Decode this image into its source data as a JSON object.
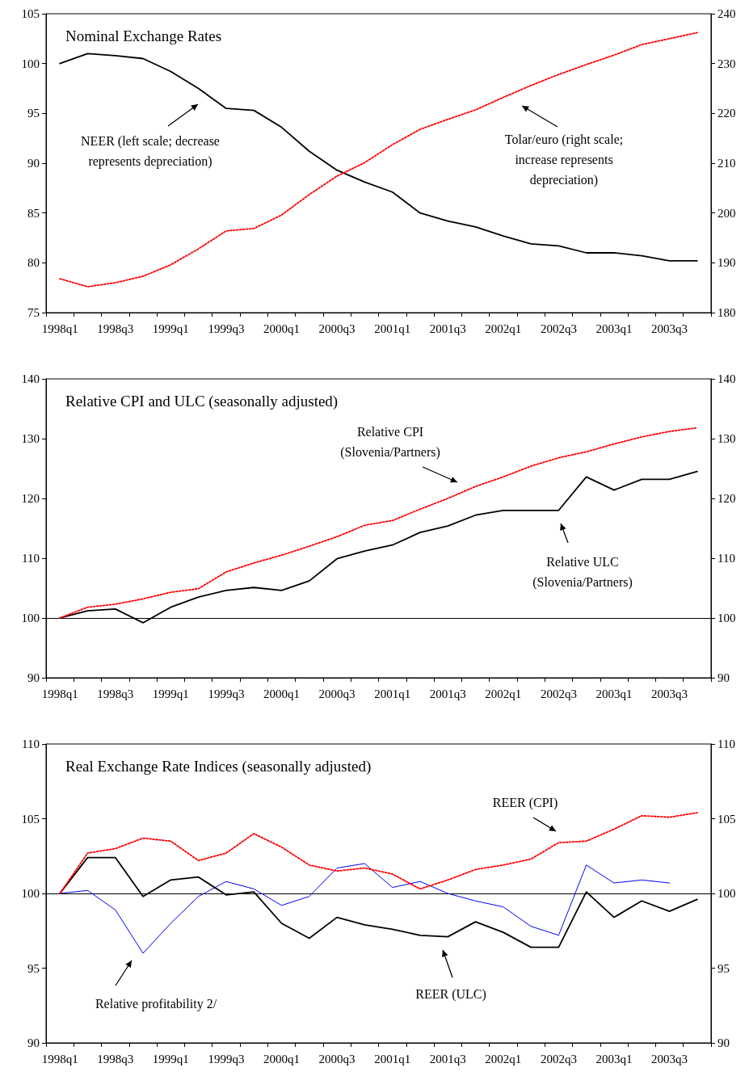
{
  "chart_data": [
    {
      "type": "line",
      "title": "Nominal Exchange Rates",
      "categories": [
        "1998q1",
        null,
        "1998q3",
        null,
        "1999q1",
        null,
        "1999q3",
        null,
        "2000q1",
        null,
        "2000q3",
        null,
        "2001q1",
        null,
        "2001q3",
        null,
        "2002q1",
        null,
        "2002q3",
        null,
        "2003q1",
        null,
        "2003q3",
        null
      ],
      "series": [
        {
          "color": "#000000",
          "line_style": "solid",
          "values": [
            100,
            101,
            100.8,
            100.5,
            99.2,
            97.5,
            95.5,
            95.3,
            93.6,
            91.2,
            89.3,
            88.1,
            87.1,
            85,
            84.2,
            83.6,
            82.7,
            81.9,
            81.7,
            81,
            81,
            80.7,
            80.2,
            80.2
          ]
        },
        {
          "color": "#ff0000",
          "line_style": "dotted",
          "axis": "y2",
          "values": [
            186.8,
            185.2,
            186,
            187.3,
            189.6,
            192.8,
            196.4,
            196.9,
            199.6,
            203.7,
            207.4,
            210.1,
            213.7,
            216.8,
            218.8,
            220.7,
            223.2,
            225.6,
            227.8,
            229.8,
            231.7,
            233.8,
            235,
            236.2
          ]
        }
      ],
      "ylim": [
        75,
        105
      ],
      "yticks": [
        75,
        80,
        85,
        90,
        95,
        100,
        105
      ],
      "y2lim": [
        180,
        240
      ],
      "y2ticks": [
        180,
        190,
        200,
        210,
        220,
        230,
        240
      ],
      "annotations": [
        "NEER (left scale; decrease\nrepresents depreciation)",
        "Tolar/euro (right scale;\nincrease represents\ndepreciation)"
      ],
      "grid": false,
      "marker": "none"
    },
    {
      "type": "line",
      "title": "Relative CPI and ULC (seasonally adjusted)",
      "categories": [
        "1998q1",
        null,
        "1998q3",
        null,
        "1999q1",
        null,
        "1999q3",
        null,
        "2000q1",
        null,
        "2000q3",
        null,
        "2001q1",
        null,
        "2001q3",
        null,
        "2002q1",
        null,
        "2002q3",
        null,
        "2003q1",
        null,
        "2003q3",
        null
      ],
      "series": [
        {
          "color": "#ff0000",
          "line_style": "dotted",
          "values": [
            100,
            101.8,
            102.3,
            103.2,
            104.3,
            104.9,
            107.7,
            109.2,
            110.5,
            112,
            113.6,
            115.5,
            116.3,
            118.2,
            120,
            122,
            123.6,
            125.4,
            126.8,
            127.8,
            129.1,
            130.3,
            131.2,
            131.8
          ]
        },
        {
          "color": "#000000",
          "line_style": "solid",
          "values": [
            100,
            101.2,
            101.5,
            99.2,
            101.8,
            103.5,
            104.6,
            105.1,
            104.6,
            106.2,
            109.9,
            111.2,
            112.2,
            114.3,
            115.4,
            117.2,
            118,
            118,
            118,
            123.6,
            121.4,
            123.2,
            123.2,
            124.5
          ]
        }
      ],
      "ylim": [
        90,
        140
      ],
      "yticks": [
        90,
        100,
        110,
        120,
        130,
        140
      ],
      "y2lim": [
        90,
        140
      ],
      "y2ticks": [
        90,
        100,
        110,
        120,
        130,
        140
      ],
      "ref_lines": [
        {
          "axis": "y",
          "value": 100,
          "color": "#000000"
        }
      ],
      "annotations": [
        "Relative CPI\n(Slovenia/Partners)",
        "Relative ULC\n(Slovenia/Partners)"
      ],
      "grid": false,
      "marker": "none"
    },
    {
      "type": "line",
      "title": "Real Exchange Rate Indices (seasonally adjusted)",
      "categories": [
        "1998q1",
        null,
        "1998q3",
        null,
        "1999q1",
        null,
        "1999q3",
        null,
        "2000q1",
        null,
        "2000q3",
        null,
        "2001q1",
        null,
        "2001q3",
        null,
        "2002q1",
        null,
        "2002q3",
        null,
        "2003q1",
        null,
        "2003q3",
        null
      ],
      "series": [
        {
          "color": "#ff0000",
          "line_style": "dotted",
          "values": [
            100,
            102.7,
            103,
            103.7,
            103.5,
            102.2,
            102.7,
            104,
            103.1,
            101.9,
            101.5,
            101.7,
            101.3,
            100.3,
            100.9,
            101.6,
            101.9,
            102.3,
            103.4,
            103.5,
            104.3,
            105.2,
            105.1,
            105.4
          ]
        },
        {
          "color": "#0000ff",
          "line_style": "solid",
          "values": [
            100,
            100.2,
            98.9,
            96,
            98,
            99.8,
            100.8,
            100.3,
            99.2,
            99.8,
            101.7,
            102,
            100.4,
            100.8,
            100,
            99.5,
            99.1,
            97.8,
            97.2,
            101.9,
            100.7,
            100.9,
            100.7,
            null
          ]
        },
        {
          "color": "#000000",
          "line_style": "solid",
          "values": [
            100,
            102.4,
            102.4,
            99.8,
            100.9,
            101.1,
            99.9,
            100.1,
            98,
            97,
            98.4,
            97.9,
            97.6,
            97.2,
            97.1,
            98.1,
            97.4,
            96.4,
            96.4,
            100.1,
            98.4,
            99.5,
            98.8,
            99.6
          ]
        }
      ],
      "ylim": [
        90,
        110
      ],
      "yticks": [
        90,
        95,
        100,
        105,
        110
      ],
      "y2lim": [
        90,
        110
      ],
      "y2ticks": [
        90,
        95,
        100,
        105,
        110
      ],
      "ref_lines": [
        {
          "axis": "y",
          "value": 100,
          "color": "#000000"
        }
      ],
      "annotations": [
        "REER (CPI)",
        "Relative profitability 2/",
        "REER (ULC)"
      ],
      "grid": false,
      "marker": "none"
    }
  ]
}
